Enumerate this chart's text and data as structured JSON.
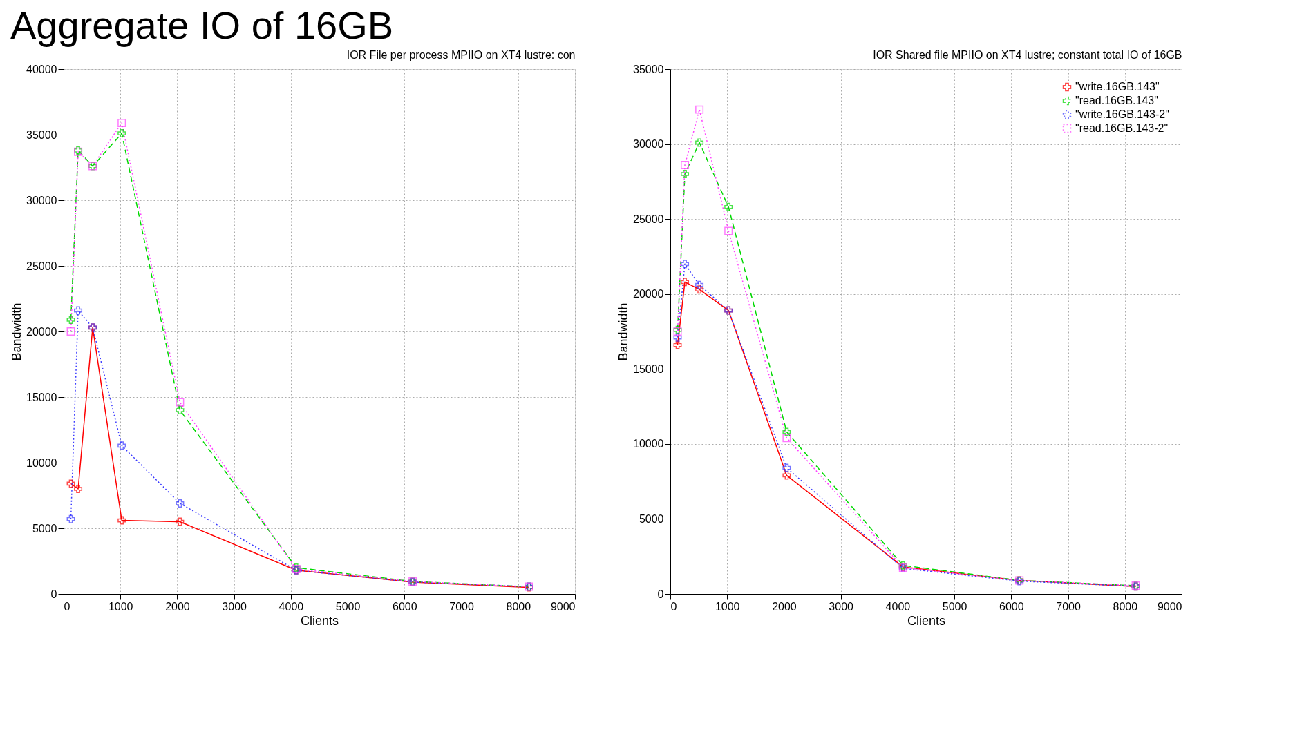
{
  "chart_data": [
    {
      "type": "line",
      "title": "IOR  File per process MPIIO on XT4 lustre: con",
      "xlabel": "Clients",
      "ylabel": "Bandwidth",
      "annotations": [
        "Aggregate IO of 16GB"
      ],
      "x": [
        128,
        256,
        512,
        1024,
        2048,
        4096,
        6144,
        8192
      ],
      "series": [
        {
          "color": "#ff0000",
          "marker": "cross",
          "line_style": "solid",
          "values": [
            8400,
            8000,
            20300,
            5600,
            5500,
            1800,
            900,
            500
          ]
        },
        {
          "color": "#00d800",
          "marker": "cross",
          "line_style": "dashed",
          "values": [
            20900,
            33800,
            32600,
            35100,
            14000,
            2000,
            950,
            550
          ]
        },
        {
          "color": "#3b3bff",
          "marker": "cross",
          "line_style": "dotted",
          "values": [
            5700,
            21600,
            20300,
            11300,
            6900,
            1800,
            900,
            550
          ]
        },
        {
          "color": "#ff40ff",
          "marker": "square",
          "line_style": "dotted",
          "values": [
            20000,
            33700,
            32600,
            35900,
            14600,
            1900,
            950,
            550
          ]
        }
      ],
      "xlim": [
        0,
        9000
      ],
      "xticks": [
        0,
        1000,
        2000,
        3000,
        4000,
        5000,
        6000,
        7000,
        8000,
        9000
      ],
      "ylim": [
        0,
        40000
      ],
      "yticks": [
        0,
        5000,
        10000,
        15000,
        20000,
        25000,
        30000,
        35000,
        40000
      ],
      "grid": true
    },
    {
      "type": "line",
      "title": "IOR Shared file MPIIO on XT4 lustre; constant total IO of 16GB",
      "xlabel": "Clients",
      "ylabel": "Bandwidth",
      "x": [
        128,
        256,
        512,
        1024,
        2048,
        4096,
        6144,
        8192
      ],
      "series": [
        {
          "name": "\"write.16GB.143\"",
          "color": "#ff0000",
          "marker": "cross",
          "line_style": "solid",
          "values": [
            16600,
            20800,
            20300,
            18900,
            7900,
            1800,
            900,
            500
          ]
        },
        {
          "name": "\"read.16GB.143\"",
          "color": "#00d800",
          "marker": "cross",
          "line_style": "dashed",
          "values": [
            17600,
            28000,
            30100,
            25800,
            10800,
            1900,
            900,
            550
          ]
        },
        {
          "name": "\"write.16GB.143-2\"",
          "color": "#3b3bff",
          "marker": "cross",
          "line_style": "dotted",
          "values": [
            17100,
            22000,
            20600,
            18900,
            8400,
            1700,
            850,
            500
          ]
        },
        {
          "name": "\"read.16GB.143-2\"",
          "color": "#ff40ff",
          "marker": "square",
          "line_style": "dotted",
          "values": [
            17500,
            28600,
            32300,
            24200,
            10400,
            1750,
            900,
            550
          ]
        }
      ],
      "xlim": [
        0,
        9000
      ],
      "xticks": [
        0,
        1000,
        2000,
        3000,
        4000,
        5000,
        6000,
        7000,
        8000,
        9000
      ],
      "ylim": [
        0,
        35000
      ],
      "yticks": [
        0,
        5000,
        10000,
        15000,
        20000,
        25000,
        30000,
        35000
      ],
      "grid": true,
      "legend": "top right"
    }
  ]
}
